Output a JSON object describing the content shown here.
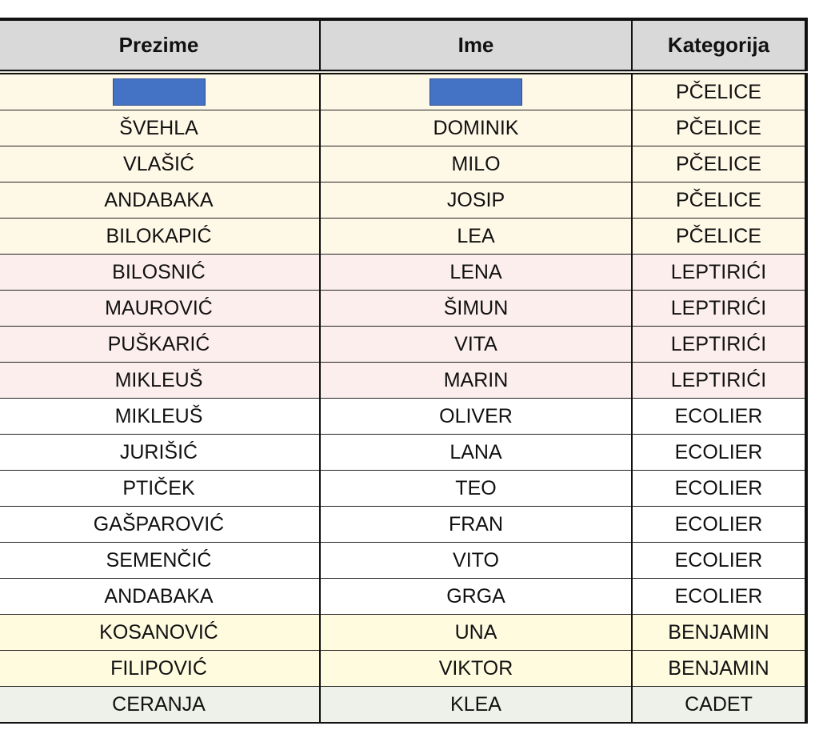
{
  "table": {
    "headers": [
      "Prezime",
      "Ime",
      "Kategorija"
    ],
    "colors": {
      "header_bg": "#d9d9d9",
      "PČELICE": "#fef8e6",
      "LEPTIRIĆI": "#fdeeee",
      "ECOLIER": "#ffffff",
      "BENJAMIN": "#fefbdf",
      "CADET": "#edf1e9",
      "redaction": "#4472c4"
    },
    "rows": [
      {
        "prezime": "",
        "ime": "",
        "kategorija": "PČELICE",
        "redacted": true
      },
      {
        "prezime": "ŠVEHLA",
        "ime": "DOMINIK",
        "kategorija": "PČELICE"
      },
      {
        "prezime": "VLAŠIĆ",
        "ime": "MILO",
        "kategorija": "PČELICE"
      },
      {
        "prezime": "ANDABAKA",
        "ime": "JOSIP",
        "kategorija": "PČELICE"
      },
      {
        "prezime": "BILOKAPIĆ",
        "ime": "LEA",
        "kategorija": "PČELICE"
      },
      {
        "prezime": "BILOSNIĆ",
        "ime": "LENA",
        "kategorija": "LEPTIRIĆI"
      },
      {
        "prezime": "MAUROVIĆ",
        "ime": "ŠIMUN",
        "kategorija": "LEPTIRIĆI"
      },
      {
        "prezime": "PUŠKARIĆ",
        "ime": "VITA",
        "kategorija": "LEPTIRIĆI"
      },
      {
        "prezime": "MIKLEUŠ",
        "ime": "MARIN",
        "kategorija": "LEPTIRIĆI"
      },
      {
        "prezime": "MIKLEUŠ",
        "ime": "OLIVER",
        "kategorija": "ECOLIER"
      },
      {
        "prezime": "JURIŠIĆ",
        "ime": "LANA",
        "kategorija": "ECOLIER"
      },
      {
        "prezime": "PTIČEK",
        "ime": "TEO",
        "kategorija": "ECOLIER"
      },
      {
        "prezime": "GAŠPAROVIĆ",
        "ime": "FRAN",
        "kategorija": "ECOLIER"
      },
      {
        "prezime": "SEMENČIĆ",
        "ime": "VITO",
        "kategorija": "ECOLIER"
      },
      {
        "prezime": "ANDABAKA",
        "ime": "GRGA",
        "kategorija": "ECOLIER"
      },
      {
        "prezime": "KOSANOVIĆ",
        "ime": "UNA",
        "kategorija": "BENJAMIN"
      },
      {
        "prezime": "FILIPOVIĆ",
        "ime": "VIKTOR",
        "kategorija": "BENJAMIN"
      },
      {
        "prezime": "CERANJA",
        "ime": "KLEA",
        "kategorija": "CADET"
      }
    ]
  }
}
